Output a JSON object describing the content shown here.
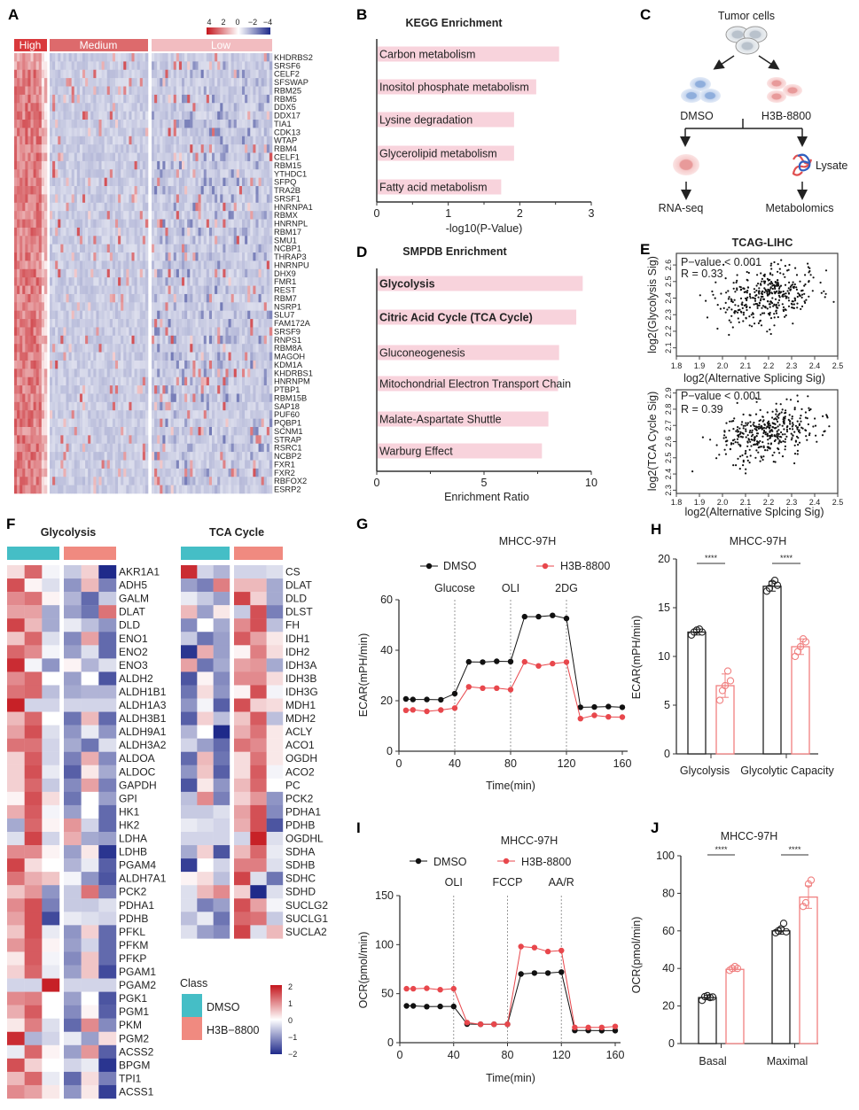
{
  "panel_labels": {
    "A": "A",
    "B": "B",
    "C": "C",
    "D": "D",
    "E": "E",
    "F": "F",
    "G": "G",
    "H": "H",
    "I": "I",
    "J": "J"
  },
  "colors": {
    "high_red": "#c4151c",
    "low_blue": "#1f2a8a",
    "enrich_bar": "#f8d3dc",
    "dmso": "#111111",
    "h3b": "#e8474c",
    "dmso_class": "#45bec6",
    "h3b_class": "#f08a80"
  },
  "panel_a": {
    "legend_ticks": [
      "4",
      "2",
      "0",
      "−2",
      "−4"
    ],
    "groups": [
      "High",
      "Medium",
      "Low"
    ],
    "group_colors": [
      "#d9393c",
      "#dd6a6c",
      "#f2bcc0"
    ],
    "genes": [
      "KHDRBS2",
      "SRSF6",
      "CELF2",
      "SFSWAP",
      "RBM25",
      "RBM5",
      "DDX5",
      "DDX17",
      "TIA1",
      "CDK13",
      "WTAP",
      "RBM4",
      "CELF1",
      "RBM15",
      "YTHDC1",
      "SFPQ",
      "TRA2B",
      "SRSF1",
      "HNRNPA1",
      "RBMX",
      "HNRNPL",
      "RBM17",
      "SMU1",
      "NCBP1",
      "THRAP3",
      "HNRNPU",
      "DHX9",
      "FMR1",
      "REST",
      "RBM7",
      "NSRP1",
      "SLU7",
      "FAM172A",
      "SRSF9",
      "RNPS1",
      "RBM8A",
      "MAGOH",
      "KDM1A",
      "KHDRBS1",
      "HNRNPM",
      "PTBP1",
      "RBM15B",
      "SAP18",
      "PUF60",
      "PQBP1",
      "SCNM1",
      "STRAP",
      "RSRC1",
      "NCBP2",
      "FXR1",
      "FXR2",
      "RBFOX2",
      "ESRP2"
    ]
  },
  "panel_c": {
    "tumor_cells": "Tumor cells",
    "dmso": "DMSO",
    "h3b": "H3B-8800",
    "lysate": "Lysate",
    "rnaseq": "RNA-seq",
    "metabolomics": "Metabolomics"
  },
  "panel_f": {
    "class_title": "Class",
    "class_dmso": "DMSO",
    "class_h3b": "H3B−8800",
    "scale_ticks": [
      "2",
      "1",
      "0",
      "−1",
      "−2"
    ]
  },
  "chart_data": [
    {
      "type": "bar",
      "orientation": "horizontal",
      "title": "KEGG Enrichment",
      "xlabel": "-log10(P-Value)",
      "categories": [
        "Carbon metabolism",
        "Inositol phosphate metabolism",
        "Lysine degradation",
        "Glycerolipid metabolism",
        "Fatty acid metabolism"
      ],
      "values": [
        2.55,
        2.23,
        1.92,
        1.92,
        1.74
      ],
      "xlim": [
        0,
        3
      ],
      "xticks": [
        "0",
        "1",
        "2",
        "3"
      ]
    },
    {
      "type": "bar",
      "orientation": "horizontal",
      "title": "SMPDB Enrichment",
      "xlabel": "Enrichment Ratio",
      "categories": [
        "Glycolysis",
        "Citric Acid Cycle (TCA Cycle)",
        "Gluconeogenesis",
        "Mitochondrial Electron Transport Chain",
        "Malate-Aspartate Shuttle",
        "Warburg Effect"
      ],
      "bold": [
        true,
        true,
        false,
        false,
        false,
        false
      ],
      "values": [
        9.6,
        9.3,
        8.5,
        8.45,
        8.0,
        7.7
      ],
      "xlim": [
        0,
        10
      ],
      "xticks": [
        "0",
        "5",
        "10"
      ]
    },
    {
      "type": "scatter",
      "title": "TCAG-LIHC",
      "xlabel": "log2(Alternative Splicing Sig)",
      "ylabel": "log2(Glycolysis Sig)",
      "annotation": [
        "P−value < 0.001",
        "R = 0.33"
      ],
      "r": 0.33,
      "xlim": [
        1.8,
        2.5
      ],
      "ylim": [
        2.05,
        2.67
      ],
      "xticks": [
        "1.8",
        "1.9",
        "2.0",
        "2.1",
        "2.2",
        "2.3",
        "2.4",
        "2.5"
      ],
      "yticks": [
        "2.1",
        "2.2",
        "2.3",
        "2.4",
        "2.5",
        "2.6"
      ]
    },
    {
      "type": "scatter",
      "xlabel": "log2(Alternative Splcing Sig)",
      "ylabel": "log2(TCA Cycle Sig)",
      "annotation": [
        "P−value < 0.001",
        "R = 0.39"
      ],
      "r": 0.39,
      "xlim": [
        1.8,
        2.5
      ],
      "ylim": [
        2.28,
        2.92
      ],
      "xticks": [
        "1.8",
        "1.9",
        "2.0",
        "2.1",
        "2.2",
        "2.3",
        "2.4",
        "2.5"
      ],
      "yticks": [
        "2.3",
        "2.4",
        "2.5",
        "2.6",
        "2.7",
        "2.8",
        "2.9"
      ]
    },
    {
      "type": "line",
      "title": "MHCC-97H",
      "xlabel": "Time(min)",
      "ylabel": "ECAR(mPH/min)",
      "injections": [
        {
          "label": "Glucose",
          "x": 40
        },
        {
          "label": "OLI",
          "x": 80
        },
        {
          "label": "2DG",
          "x": 120
        }
      ],
      "x": [
        5,
        10,
        20,
        30,
        40,
        50,
        60,
        70,
        80,
        90,
        100,
        110,
        120,
        130,
        140,
        150,
        160
      ],
      "series": [
        {
          "name": "DMSO",
          "values": [
            20.7,
            20.5,
            20.5,
            20.4,
            22.8,
            35.4,
            35.3,
            35.6,
            35.5,
            53.3,
            53.3,
            53.8,
            52.6,
            17.4,
            17.5,
            17.7,
            17.4
          ]
        },
        {
          "name": "H3B-8800",
          "values": [
            16.2,
            16.4,
            15.8,
            16.3,
            17.1,
            25.5,
            25.0,
            25.0,
            24.4,
            35.4,
            33.8,
            34.7,
            35.3,
            12.9,
            14.2,
            13.6,
            13.5
          ]
        }
      ],
      "xlim": [
        0,
        160
      ],
      "ylim": [
        0,
        60
      ],
      "xticks": [
        "0",
        "40",
        "80",
        "120",
        "160"
      ],
      "yticks": [
        "0",
        "20",
        "40",
        "60"
      ]
    },
    {
      "type": "bar",
      "title": "MHCC-97H",
      "ylabel": "ECAR(mPH/min)",
      "categories": [
        "Glycolysis",
        "Glycolytic Capacity"
      ],
      "series": [
        {
          "name": "DMSO",
          "values": [
            12.5,
            17.2
          ],
          "sd": [
            0.3,
            0.5
          ],
          "points": [
            [
              12.2,
              12.5,
              12.7,
              12.8,
              12.5
            ],
            [
              16.7,
              17.0,
              17.5,
              17.8,
              17.3
            ]
          ]
        },
        {
          "name": "H3B-8800",
          "values": [
            7.0,
            11.0
          ],
          "sd": [
            1.2,
            0.8
          ],
          "points": [
            [
              5.5,
              6.5,
              7.0,
              8.5,
              7.5
            ],
            [
              10.0,
              10.5,
              11.0,
              11.8,
              11.5
            ]
          ]
        }
      ],
      "significance": [
        "****",
        "****"
      ],
      "ylim": [
        0,
        20
      ],
      "yticks": [
        "0",
        "5",
        "10",
        "15",
        "20"
      ]
    },
    {
      "type": "line",
      "title": "MHCC-97H",
      "xlabel": "Time(min)",
      "ylabel": "OCR(pmol/min)",
      "injections": [
        {
          "label": "OLI",
          "x": 40
        },
        {
          "label": "FCCP",
          "x": 80
        },
        {
          "label": "AA/R",
          "x": 120
        }
      ],
      "x": [
        5,
        10,
        20,
        30,
        40,
        50,
        60,
        70,
        80,
        90,
        100,
        110,
        120,
        130,
        140,
        150,
        160
      ],
      "series": [
        {
          "name": "DMSO",
          "values": [
            37.5,
            37.5,
            36.8,
            37,
            37,
            19,
            18.8,
            18.8,
            18.8,
            70,
            71,
            71,
            72,
            12.5,
            12.5,
            12.3,
            12.3
          ]
        },
        {
          "name": "H3B-8800",
          "values": [
            55,
            55,
            55.5,
            54,
            55,
            20.5,
            18.8,
            18.8,
            18.8,
            98,
            97,
            93,
            94,
            15.5,
            15.5,
            15.5,
            16.5
          ]
        }
      ],
      "xlim": [
        0,
        160
      ],
      "ylim": [
        0,
        150
      ],
      "xticks": [
        "0",
        "40",
        "80",
        "120",
        "160"
      ],
      "yticks": [
        "0",
        "50",
        "100",
        "150"
      ]
    },
    {
      "type": "bar",
      "title": "MHCC-97H",
      "ylabel": "OCR(pmol/min)",
      "categories": [
        "Basal",
        "Maximal"
      ],
      "series": [
        {
          "name": "DMSO",
          "values": [
            24.5,
            60
          ],
          "sd": [
            1.2,
            1.8
          ],
          "points": [
            [
              23,
              25,
              25.5,
              24.5,
              24.8
            ],
            [
              59,
              60,
              61,
              64,
              59.5
            ]
          ]
        },
        {
          "name": "H3B-8800",
          "values": [
            39.5,
            78
          ],
          "sd": [
            1.0,
            6.0
          ],
          "points": [
            [
              39,
              40,
              41,
              40
            ],
            [
              73,
              75,
              85,
              87
            ]
          ]
        }
      ],
      "significance": [
        "****",
        "****"
      ],
      "ylim": [
        0,
        100
      ],
      "yticks": [
        "0",
        "20",
        "40",
        "60",
        "80",
        "100"
      ]
    },
    {
      "type": "heatmap",
      "title": "Glycolysis",
      "column_groups": [
        "DMSO",
        "DMSO",
        "DMSO",
        "H3B-8800",
        "H3B-8800",
        "H3B-8800"
      ],
      "zlim": [
        -2,
        2
      ],
      "rows": [
        "AKR1A1",
        "ADH5",
        "GALM",
        "DLAT",
        "DLD",
        "ENO1",
        "ENO2",
        "ENO3",
        "ALDH2",
        "ALDH1B1",
        "ALDH1A3",
        "ALDH3B1",
        "ALDH9A1",
        "ALDH3A2",
        "ALDOA",
        "ALDOC",
        "GAPDH",
        "GPI",
        "HK1",
        "HK2",
        "LDHA",
        "LDHB",
        "PGAM4",
        "ALDH7A1",
        "PCK2",
        "PDHA1",
        "PDHB",
        "PFKL",
        "PFKM",
        "PFKP",
        "PGAM1",
        "PGAM2",
        "PGK1",
        "PGM1",
        "PKM",
        "PGM2",
        "ACSS2",
        "BPGM",
        "TPI1",
        "ACSS1"
      ],
      "values": [
        [
          0.3,
          1.3,
          -0.1,
          -0.5,
          0.4,
          -2
        ],
        [
          1.5,
          0.1,
          -0.3,
          -1,
          0.6,
          -1.2
        ],
        [
          1,
          1.2,
          0.1,
          -0.7,
          -1.4,
          -0.5
        ],
        [
          0.8,
          0.8,
          -0.8,
          -0.9,
          -1.3,
          1.2
        ],
        [
          1.6,
          0.6,
          -0.8,
          -0.2,
          -0.6,
          -1
        ],
        [
          0.5,
          1.3,
          -0.3,
          -1.1,
          0.8,
          -1.4
        ],
        [
          1.3,
          1,
          -0.1,
          -0.9,
          -0.3,
          -1.4
        ],
        [
          1.8,
          -0.1,
          -1,
          0.1,
          -0.7,
          -0.3
        ],
        [
          1,
          1.3,
          0,
          -0.9,
          0,
          -1.6
        ],
        [
          1.2,
          1.3,
          -0.6,
          -0.8,
          -0.7,
          -0.7
        ],
        [
          1.9,
          -0.4,
          -0.4,
          -0.4,
          -0.4,
          -0.4
        ],
        [
          0.6,
          1.3,
          0,
          -1.3,
          0.6,
          -1.4
        ],
        [
          0.8,
          1.5,
          -0.3,
          -1,
          -0.2,
          -1
        ],
        [
          1.2,
          1.2,
          -0.4,
          -0.8,
          -1.3,
          -0.3
        ],
        [
          0.4,
          1.4,
          -0.4,
          -1.2,
          0.7,
          -1.1
        ],
        [
          0.4,
          1.5,
          -0.2,
          -1.5,
          0.2,
          -0.8
        ],
        [
          0.4,
          1.3,
          -0.5,
          -1.1,
          0.8,
          -1.2
        ],
        [
          0.1,
          1.5,
          0.3,
          -1.3,
          0,
          -0.9
        ],
        [
          0.7,
          1.4,
          -0.1,
          -0.9,
          0,
          -1.4
        ],
        [
          -0.8,
          1.3,
          0.1,
          0.9,
          -0.4,
          -1.4
        ],
        [
          -0.3,
          1.6,
          -0.4,
          0.7,
          -0.8,
          -0.9
        ],
        [
          1,
          1,
          0.1,
          -0.9,
          0.2,
          -1.9
        ],
        [
          1.6,
          0.3,
          0,
          -0.7,
          -0.2,
          -1.5
        ],
        [
          1.2,
          0.7,
          0.5,
          -0.1,
          -1,
          -1.6
        ],
        [
          0.5,
          0.9,
          -1,
          -0.5,
          1.2,
          -1.2
        ],
        [
          1,
          1.5,
          -1.2,
          -0.5,
          -0.5,
          -0.3
        ],
        [
          0.8,
          1.5,
          -1.7,
          -0.2,
          -0.3,
          -0.4
        ],
        [
          0.5,
          1.5,
          -0.2,
          -1,
          0.4,
          -1.4
        ],
        [
          0.9,
          1.4,
          0.1,
          -0.9,
          -0.4,
          -1.4
        ],
        [
          0.2,
          1.4,
          -0.1,
          -1.1,
          0.5,
          -1.4
        ],
        [
          0.4,
          1.3,
          -0.2,
          -0.9,
          0.5,
          -1.7
        ],
        [
          -0.4,
          -0.4,
          1.9,
          -0.4,
          -0.4,
          -0.4
        ],
        [
          1,
          1.1,
          0,
          -0.9,
          0,
          -1.6
        ],
        [
          0.7,
          1.4,
          0,
          -1.1,
          0.1,
          -1.5
        ],
        [
          0.2,
          1.1,
          -0.3,
          -1.4,
          1,
          -1.1
        ],
        [
          1.8,
          -0.7,
          -0.4,
          -0.2,
          -0.9,
          0.3
        ],
        [
          -0.2,
          1.3,
          0.1,
          -0.9,
          0.9,
          -1.5
        ],
        [
          1.5,
          0.4,
          0,
          -0.4,
          -0.2,
          -1.9
        ],
        [
          0.6,
          1.3,
          -0.2,
          -1.4,
          0.3,
          -1.2
        ],
        [
          1,
          0.8,
          0.2,
          -1,
          0.2,
          -1.8
        ]
      ]
    },
    {
      "type": "heatmap",
      "title": "TCA Cycle",
      "column_groups": [
        "DMSO",
        "DMSO",
        "DMSO",
        "H3B-8800",
        "H3B-8800",
        "H3B-8800"
      ],
      "zlim": [
        -2,
        2
      ],
      "rows": [
        "CS",
        "DLAT",
        "DLD",
        "DLST",
        "FH",
        "IDH1",
        "IDH2",
        "IDH3A",
        "IDH3B",
        "IDH3G",
        "MDH1",
        "MDH2",
        "ACLY",
        "ACO1",
        "OGDH",
        "ACO2",
        "PC",
        "PCK2",
        "PDHA1",
        "PDHB",
        "OGDHL",
        "SDHA",
        "SDHB",
        "SDHC",
        "SDHD",
        "SUCLG2",
        "SUCLG1",
        "SUCLA2"
      ],
      "values": [
        [
          1.8,
          -0.4,
          -0.7,
          -0.4,
          -0.4,
          -0.3
        ],
        [
          -0.9,
          -1.2,
          1.1,
          0.6,
          0.6,
          -0.8
        ],
        [
          -0.2,
          -0.5,
          -0.9,
          1.6,
          0.4,
          -0.8
        ],
        [
          0.6,
          -0.9,
          0.2,
          -0.5,
          1.5,
          -1.2
        ],
        [
          -1.1,
          0,
          -0.8,
          1,
          1.5,
          -0.6
        ],
        [
          -0.5,
          -1.3,
          -0.9,
          1.4,
          0.8,
          0.2
        ],
        [
          -1.9,
          0.7,
          -0.9,
          0.1,
          1.1,
          0.3
        ],
        [
          0.8,
          -1.3,
          -0.8,
          0.8,
          0.9,
          -0.8
        ],
        [
          -1.6,
          0.1,
          -1.1,
          1,
          1,
          0.3
        ],
        [
          -1.3,
          0.3,
          -1,
          0.1,
          1.5,
          -0.1
        ],
        [
          -1,
          -0.1,
          -1.5,
          1.5,
          0.4,
          0.3
        ],
        [
          -1.5,
          0.4,
          -0.6,
          0.5,
          1.4,
          -0.6
        ],
        [
          -0.7,
          0,
          -2,
          0.7,
          1.2,
          0.2
        ],
        [
          -0.4,
          -0.9,
          -1.4,
          1.2,
          1,
          0.2
        ],
        [
          -1.4,
          0.6,
          -1.3,
          0.3,
          1.2,
          0.2
        ],
        [
          -1,
          0.5,
          -1.5,
          0.3,
          1.4,
          -0.1
        ],
        [
          -1.6,
          0.2,
          -1,
          0.6,
          1.3,
          0
        ],
        [
          -0.6,
          1,
          -1.2,
          0.4,
          0.9,
          -1
        ],
        [
          -0.5,
          -0.5,
          -0.3,
          0.8,
          1.5,
          -1.1
        ],
        [
          -0.2,
          -0.3,
          -0.4,
          0.7,
          1.5,
          -1.6
        ],
        [
          -0.4,
          -0.4,
          -0.4,
          -0.4,
          1.9,
          -0.3
        ],
        [
          -0.8,
          0.4,
          -1.6,
          0.6,
          1.3,
          -0.2
        ],
        [
          -1.8,
          0,
          -0.4,
          1.1,
          1.1,
          -0.3
        ],
        [
          0.1,
          0.3,
          -0.6,
          1.6,
          -0.3,
          -1.3
        ],
        [
          -0.3,
          0.6,
          1,
          0.4,
          -2,
          -0.3
        ],
        [
          -0.3,
          -1.2,
          -0.9,
          1.5,
          0.8,
          -0.1
        ],
        [
          -0.6,
          -0.2,
          -1.3,
          1.3,
          1.2,
          -0.5
        ],
        [
          -0.3,
          -0.9,
          -1.1,
          1.6,
          -0.3,
          0.6
        ]
      ]
    }
  ]
}
